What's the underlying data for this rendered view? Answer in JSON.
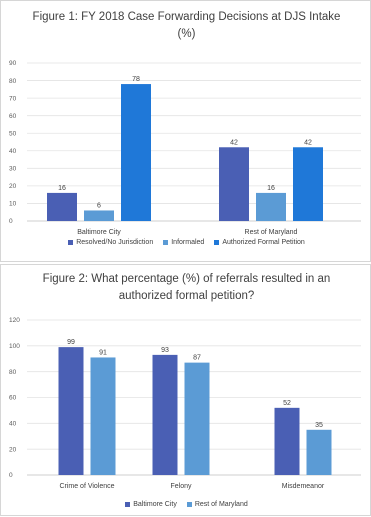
{
  "chart_data": [
    {
      "type": "bar",
      "title": "Figure 1: FY 2018 Case Forwarding Decisions at DJS Intake (%)",
      "title_lines": [
        "Figure 1: FY 2018 Case Forwarding Decisions at DJS Intake",
        "(%)"
      ],
      "categories": [
        "Baltimore City",
        "Rest of Maryland"
      ],
      "series": [
        {
          "name": "Resolved/No Jurisdiction",
          "color": "#4a5fb4",
          "values": [
            16,
            42
          ]
        },
        {
          "name": "Informaled",
          "color": "#5b9bd5",
          "values": [
            6,
            16
          ]
        },
        {
          "name": "Authorized Formal Petition",
          "color": "#1f78d8",
          "values": [
            78,
            42
          ]
        }
      ],
      "yticks": [
        "0",
        "10",
        "20",
        "30",
        "40",
        "50",
        "60",
        "70",
        "80",
        "90"
      ],
      "ylim": [
        0,
        90
      ],
      "grid": true,
      "legend": "bottom"
    },
    {
      "type": "bar",
      "title": "Figure 2: What percentage (%) of referrals resulted in an authorized formal petition?",
      "title_lines": [
        "Figure 2: What percentage (%) of referrals resulted in an",
        "authorized formal petition?"
      ],
      "categories": [
        "Crime of Violence",
        "Felony",
        "Misdemeanor"
      ],
      "series": [
        {
          "name": "Baltimore City",
          "color": "#4a5fb4",
          "values": [
            99,
            93,
            52
          ]
        },
        {
          "name": "Rest of Maryland",
          "color": "#5b9bd5",
          "values": [
            91,
            87,
            35
          ]
        }
      ],
      "yticks": [
        "0",
        "20",
        "40",
        "60",
        "80",
        "100",
        "120"
      ],
      "ylim": [
        0,
        120
      ],
      "grid": true,
      "legend": "bottom"
    }
  ]
}
